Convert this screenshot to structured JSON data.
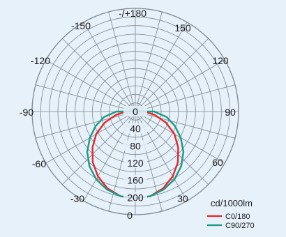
{
  "chart_data": {
    "type": "polar",
    "unit_label": "cd/1000lm",
    "angle_labels": [
      "-/+180",
      "150",
      "120",
      "90",
      "60",
      "30",
      "0",
      "-30",
      "-60",
      "-90",
      "-120",
      "-150"
    ],
    "radial_ticks": [
      "0",
      "40",
      "80",
      "120",
      "160",
      "200"
    ],
    "radial_max": 240,
    "grid": true,
    "legend_position": "bottom-right",
    "series": [
      {
        "name": "C0/180",
        "color": "#e8262a",
        "angles": [
          0,
          10,
          20,
          30,
          40,
          50,
          60,
          70,
          80,
          90,
          100,
          180,
          260,
          270,
          280,
          290,
          300,
          310,
          320,
          330,
          340,
          350
        ],
        "values": [
          203,
          200,
          190,
          174,
          154,
          130,
          105,
          76,
          46,
          22,
          0,
          0,
          0,
          22,
          46,
          76,
          105,
          130,
          154,
          174,
          190,
          200
        ]
      },
      {
        "name": "C90/270",
        "color": "#1a9a84",
        "angles": [
          0,
          10,
          20,
          30,
          40,
          50,
          60,
          70,
          80,
          90,
          100,
          180,
          260,
          270,
          280,
          290,
          300,
          310,
          320,
          330,
          340,
          350
        ],
        "values": [
          201,
          200,
          193,
          182,
          166,
          146,
          122,
          98,
          74,
          44,
          0,
          0,
          0,
          44,
          74,
          98,
          122,
          146,
          166,
          182,
          193,
          200
        ]
      }
    ]
  }
}
